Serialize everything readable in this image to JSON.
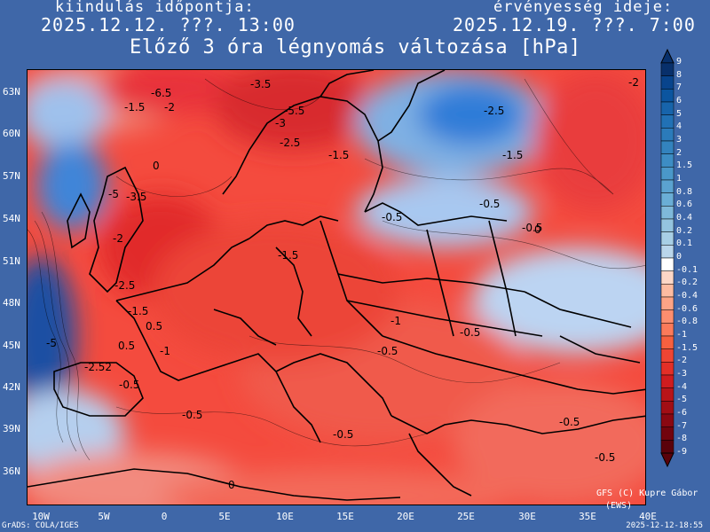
{
  "header": {
    "start_label": "kiindulás időpontja:",
    "start_value": "2025.12.12. ???. 13:00",
    "valid_label": "érvényesség ideje:",
    "valid_value": "2025.12.19. ???. 7:00",
    "title": "Előző 3 óra légnyomás változása [hPa]"
  },
  "lat_labels": [
    "63N",
    "60N",
    "57N",
    "54N",
    "51N",
    "48N",
    "45N",
    "42N",
    "39N",
    "36N"
  ],
  "lon_labels": [
    "10W",
    "5W",
    "0",
    "5E",
    "10E",
    "15E",
    "20E",
    "25E",
    "30E",
    "35E",
    "40E"
  ],
  "colorbar": {
    "labels": [
      "9",
      "8",
      "7",
      "6",
      "5",
      "4",
      "3",
      "2",
      "1.5",
      "1",
      "0.8",
      "0.6",
      "0.4",
      "0.2",
      "0.1",
      "0",
      "-0.1",
      "-0.2",
      "-0.4",
      "-0.6",
      "-0.8",
      "-1",
      "-1.5",
      "-2",
      "-3",
      "-4",
      "-5",
      "-6",
      "-7",
      "-8",
      "-9"
    ],
    "colors": [
      "#08306b",
      "#08448c",
      "#0b559f",
      "#1764ab",
      "#2171b5",
      "#2b7bba",
      "#3383be",
      "#3d8dc4",
      "#4a98c9",
      "#5ba3d0",
      "#6aaed6",
      "#7fb9da",
      "#94c4df",
      "#a8cfe5",
      "#bad6eb",
      "#ffffff",
      "#fcd7c7",
      "#fcbba1",
      "#fca486",
      "#fc8e6f",
      "#fb7a5a",
      "#f6603f",
      "#ef4533",
      "#e32f27",
      "#cf1c1f",
      "#b81419",
      "#a10e15",
      "#8a0812",
      "#72040e",
      "#5a020a"
    ]
  },
  "map_labels": [
    {
      "t": "-3.5"
    },
    {
      "t": "-6.5"
    },
    {
      "t": "-1.5"
    },
    {
      "t": "-2"
    },
    {
      "t": "-5.5"
    },
    {
      "t": "-3"
    },
    {
      "t": "-2.5"
    },
    {
      "t": "-1.5"
    },
    {
      "t": "-2.5"
    },
    {
      "t": "-1.5"
    },
    {
      "t": "-2"
    },
    {
      "t": "0"
    },
    {
      "t": "-5"
    },
    {
      "t": "-3.5"
    },
    {
      "t": "-0.5"
    },
    {
      "t": "-0.5"
    },
    {
      "t": "-0.5"
    },
    {
      "t": "0"
    },
    {
      "t": "-1.5"
    },
    {
      "t": "-1"
    },
    {
      "t": "-2.5"
    },
    {
      "t": "-1.5"
    },
    {
      "t": "0.5"
    },
    {
      "t": "0.5"
    },
    {
      "t": "-5"
    },
    {
      "t": "-2.52"
    },
    {
      "t": "-0.5"
    },
    {
      "t": "-1"
    },
    {
      "t": "-0.5"
    },
    {
      "t": "-0.5"
    },
    {
      "t": "-0.5"
    },
    {
      "t": "-0.5"
    },
    {
      "t": "-0.5"
    },
    {
      "t": "-0.5"
    },
    {
      "t": "-2"
    },
    {
      "t": "0"
    }
  ],
  "credit": {
    "line1": "GFS (C) Kupre Gábor",
    "line2": "(EWS)"
  },
  "footer": {
    "left": "GrADS: COLA/IGES",
    "right": "2025-12-12-18:55"
  }
}
